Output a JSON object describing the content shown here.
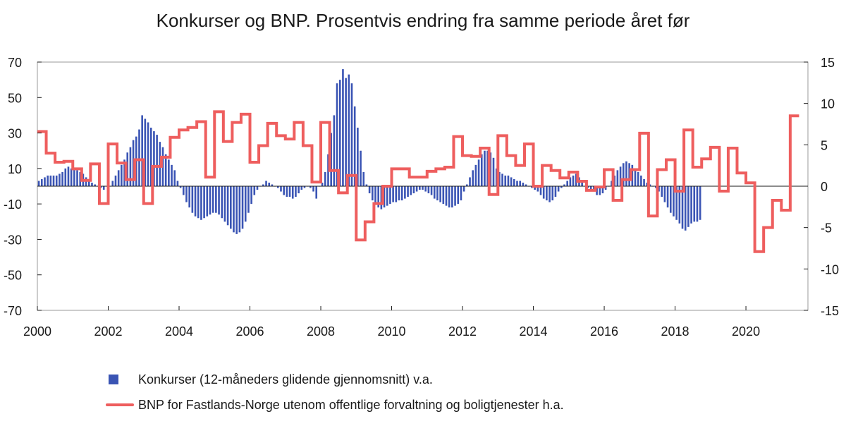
{
  "chart_data": {
    "type": "bar+line",
    "title": "Konkurser og BNP. Prosentvis endring fra samme periode året før",
    "left_axis": {
      "ticks": [
        70,
        50,
        30,
        10,
        -10,
        -30,
        -50,
        -70
      ],
      "ylim": [
        -70,
        70
      ]
    },
    "right_axis": {
      "ticks": [
        15,
        10,
        5,
        0,
        -5,
        -10,
        -15
      ],
      "ylim": [
        -15,
        15
      ]
    },
    "x_axis": {
      "ticks": [
        "2000",
        "2002",
        "2004",
        "2006",
        "2008",
        "2010",
        "2012",
        "2014",
        "2016",
        "2018",
        "2020"
      ],
      "xlim": [
        2000.0,
        2021.75
      ]
    },
    "grid": false,
    "legend_position": "bottom",
    "series": [
      {
        "name": "Konkurser (12-måneders glidende gjennomsnitt) v.a.",
        "type": "bar",
        "axis": "left",
        "color": "#3a54b4",
        "start": "2000-01",
        "frequency": "monthly",
        "values": [
          3,
          4,
          5,
          6,
          6,
          6,
          6,
          7,
          8,
          10,
          11,
          10,
          10,
          9,
          8,
          7,
          5,
          4,
          2,
          1,
          0,
          -1,
          -2,
          0,
          0,
          3,
          6,
          9,
          12,
          15,
          19,
          22,
          26,
          28,
          32,
          40,
          38,
          36,
          33,
          31,
          29,
          25,
          22,
          18,
          15,
          12,
          9,
          3,
          -1,
          -5,
          -9,
          -12,
          -15,
          -17,
          -18,
          -19,
          -18,
          -17,
          -16,
          -15,
          -15,
          -16,
          -18,
          -20,
          -22,
          -24,
          -26,
          -27,
          -26,
          -24,
          -20,
          -15,
          -10,
          -5,
          -2,
          0,
          1,
          3,
          2,
          1,
          0,
          -1,
          -3,
          -5,
          -6,
          -6,
          -7,
          -6,
          -4,
          -2,
          -1,
          0,
          -1,
          -3,
          -7,
          0,
          2,
          8,
          18,
          30,
          40,
          58,
          60,
          66,
          61,
          63,
          58,
          45,
          33,
          20,
          8,
          1,
          -4,
          -8,
          -10,
          -12,
          -13,
          -12,
          -11,
          -10,
          -9,
          -9,
          -8,
          -8,
          -7,
          -6,
          -5,
          -4,
          -3,
          -2,
          -2,
          -3,
          -4,
          -5,
          -7,
          -8,
          -9,
          -10,
          -11,
          -12,
          -12,
          -11,
          -10,
          -8,
          -3,
          1,
          5,
          9,
          12,
          15,
          18,
          20,
          20,
          19,
          16,
          10,
          8,
          7,
          6,
          6,
          5,
          4,
          3,
          3,
          2,
          1,
          0,
          -1,
          -2,
          -3,
          -5,
          -7,
          -8,
          -9,
          -8,
          -6,
          -3,
          -1,
          1,
          3,
          5,
          6,
          7,
          5,
          3,
          0,
          -1,
          -2,
          -3,
          -5,
          -5,
          -4,
          -2,
          0,
          3,
          6,
          9,
          11,
          13,
          14,
          13,
          12,
          10,
          8,
          6,
          4,
          2,
          1,
          0,
          -1,
          -3,
          -6,
          -9,
          -12,
          -15,
          -17,
          -19,
          -21,
          -24,
          -25,
          -23,
          -21,
          -20,
          -20,
          -19
        ]
      },
      {
        "name": "BNP for Fastlands-Norge utenom offentlige forvaltning og boligtjenester h.a.",
        "type": "line",
        "axis": "right",
        "color": "#ee5e5e",
        "start": "2000-Q1",
        "frequency": "quarterly",
        "values": [
          6.6,
          4.0,
          2.9,
          3.0,
          2.1,
          0.7,
          2.7,
          -2.1,
          5.1,
          2.8,
          0.8,
          3.2,
          -2.1,
          2.4,
          3.5,
          5.9,
          6.8,
          7.1,
          7.8,
          1.1,
          9.0,
          5.4,
          7.7,
          8.7,
          2.9,
          4.9,
          7.6,
          6.1,
          5.7,
          7.7,
          4.9,
          0.5,
          7.7,
          1.9,
          -0.8,
          1.3,
          -6.5,
          -4.3,
          -2.1,
          0.0,
          2.1,
          2.1,
          1.1,
          1.1,
          1.8,
          2.1,
          2.3,
          6.0,
          3.7,
          3.6,
          4.6,
          -1.0,
          6.1,
          3.7,
          2.5,
          5.1,
          0.0,
          2.5,
          1.9,
          1.0,
          1.7,
          0.6,
          -0.5,
          -0.1,
          2.0,
          -1.7,
          0.8,
          2.0,
          6.4,
          -3.6,
          2.0,
          3.2,
          -0.6,
          6.8,
          2.3,
          3.3,
          4.7,
          -0.6,
          4.6,
          1.6,
          0.4,
          -7.9,
          -5.0,
          -1.7,
          -2.9,
          8.5
        ]
      }
    ]
  }
}
